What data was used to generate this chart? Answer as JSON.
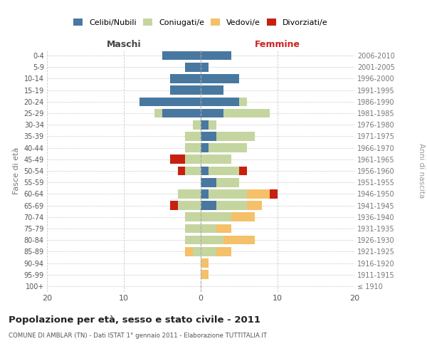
{
  "age_groups": [
    "100+",
    "95-99",
    "90-94",
    "85-89",
    "80-84",
    "75-79",
    "70-74",
    "65-69",
    "60-64",
    "55-59",
    "50-54",
    "45-49",
    "40-44",
    "35-39",
    "30-34",
    "25-29",
    "20-24",
    "15-19",
    "10-14",
    "5-9",
    "0-4"
  ],
  "birth_years": [
    "≤ 1910",
    "1911-1915",
    "1916-1920",
    "1921-1925",
    "1926-1930",
    "1931-1935",
    "1936-1940",
    "1941-1945",
    "1946-1950",
    "1951-1955",
    "1956-1960",
    "1961-1965",
    "1966-1970",
    "1971-1975",
    "1976-1980",
    "1981-1985",
    "1986-1990",
    "1991-1995",
    "1996-2000",
    "2001-2005",
    "2006-2010"
  ],
  "male_celibi": [
    0,
    0,
    0,
    0,
    0,
    0,
    0,
    0,
    0,
    0,
    0,
    0,
    0,
    0,
    0,
    5,
    8,
    4,
    4,
    2,
    5
  ],
  "male_coniugati": [
    0,
    0,
    0,
    1,
    2,
    2,
    2,
    3,
    3,
    0,
    2,
    2,
    2,
    2,
    1,
    1,
    0,
    0,
    0,
    0,
    0
  ],
  "male_vedovi": [
    0,
    0,
    0,
    1,
    0,
    0,
    0,
    0,
    0,
    0,
    0,
    0,
    0,
    0,
    0,
    0,
    0,
    0,
    0,
    0,
    0
  ],
  "male_divorziati": [
    0,
    0,
    0,
    0,
    0,
    0,
    0,
    1,
    0,
    0,
    1,
    2,
    0,
    0,
    0,
    0,
    0,
    0,
    0,
    0,
    0
  ],
  "female_celibi": [
    0,
    0,
    0,
    0,
    0,
    0,
    0,
    2,
    1,
    2,
    1,
    0,
    1,
    2,
    1,
    3,
    5,
    3,
    5,
    1,
    4
  ],
  "female_coniugati": [
    0,
    0,
    0,
    2,
    3,
    2,
    4,
    4,
    5,
    3,
    4,
    4,
    5,
    5,
    1,
    6,
    1,
    0,
    0,
    0,
    0
  ],
  "female_vedovi": [
    0,
    1,
    1,
    2,
    4,
    2,
    3,
    2,
    3,
    0,
    0,
    0,
    0,
    0,
    0,
    0,
    0,
    0,
    0,
    0,
    0
  ],
  "female_divorziati": [
    0,
    0,
    0,
    0,
    0,
    0,
    0,
    0,
    1,
    0,
    1,
    0,
    0,
    0,
    0,
    0,
    0,
    0,
    0,
    0,
    0
  ],
  "color_celibi": "#4878a0",
  "color_coniugati": "#c5d5a0",
  "color_vedovi": "#f5c06a",
  "color_divorziati": "#c82010",
  "title": "Popolazione per età, sesso e stato civile - 2011",
  "subtitle": "COMUNE DI AMBLAR (TN) - Dati ISTAT 1° gennaio 2011 - Elaborazione TUTTITALIA.IT",
  "xlabel_left": "Maschi",
  "xlabel_right": "Femmine",
  "ylabel_left": "Fasce di età",
  "ylabel_right": "Anni di nascita",
  "xlim": 20,
  "background_color": "#ffffff",
  "grid_color": "#cccccc"
}
